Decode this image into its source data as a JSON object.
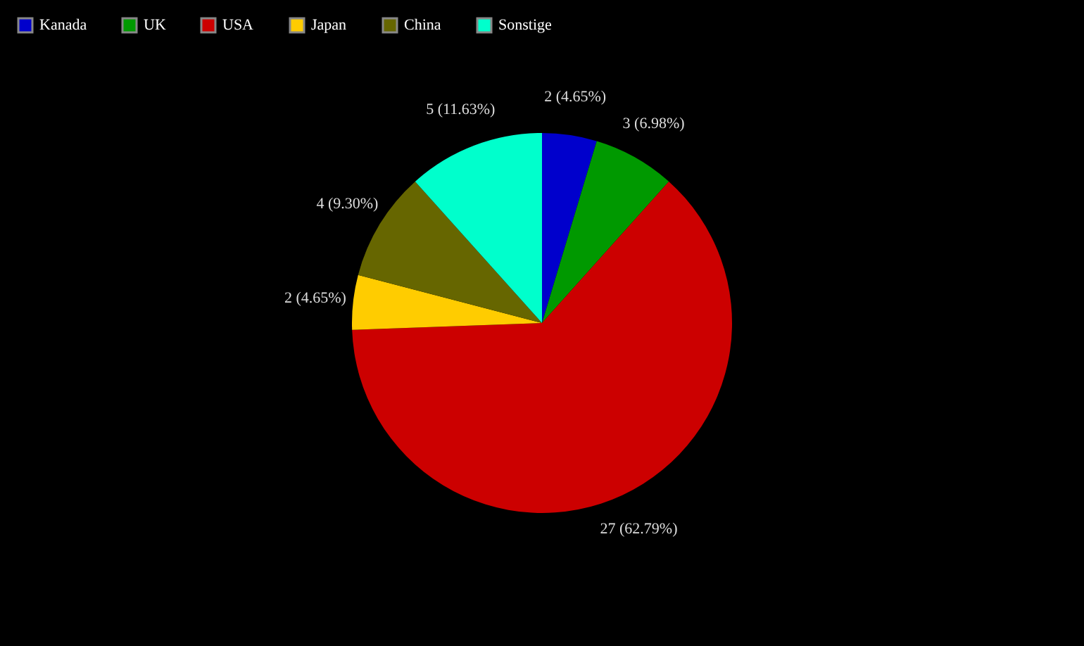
{
  "chart_data": {
    "type": "pie",
    "categories": [
      "Kanada",
      "UK",
      "USA",
      "Japan",
      "China",
      "Sonstige"
    ],
    "values": [
      2,
      3,
      27,
      2,
      4,
      5
    ],
    "colors": [
      "#0000cc",
      "#009900",
      "#cc0000",
      "#ffcc00",
      "#666600",
      "#00ffcc"
    ],
    "value_labels": [
      "2 (4.65%)",
      "3 (6.98%)",
      "27 (62.79%)",
      "2 (4.65%)",
      "4 (9.30%)",
      "5 (11.63%)"
    ],
    "legend": "top left"
  }
}
